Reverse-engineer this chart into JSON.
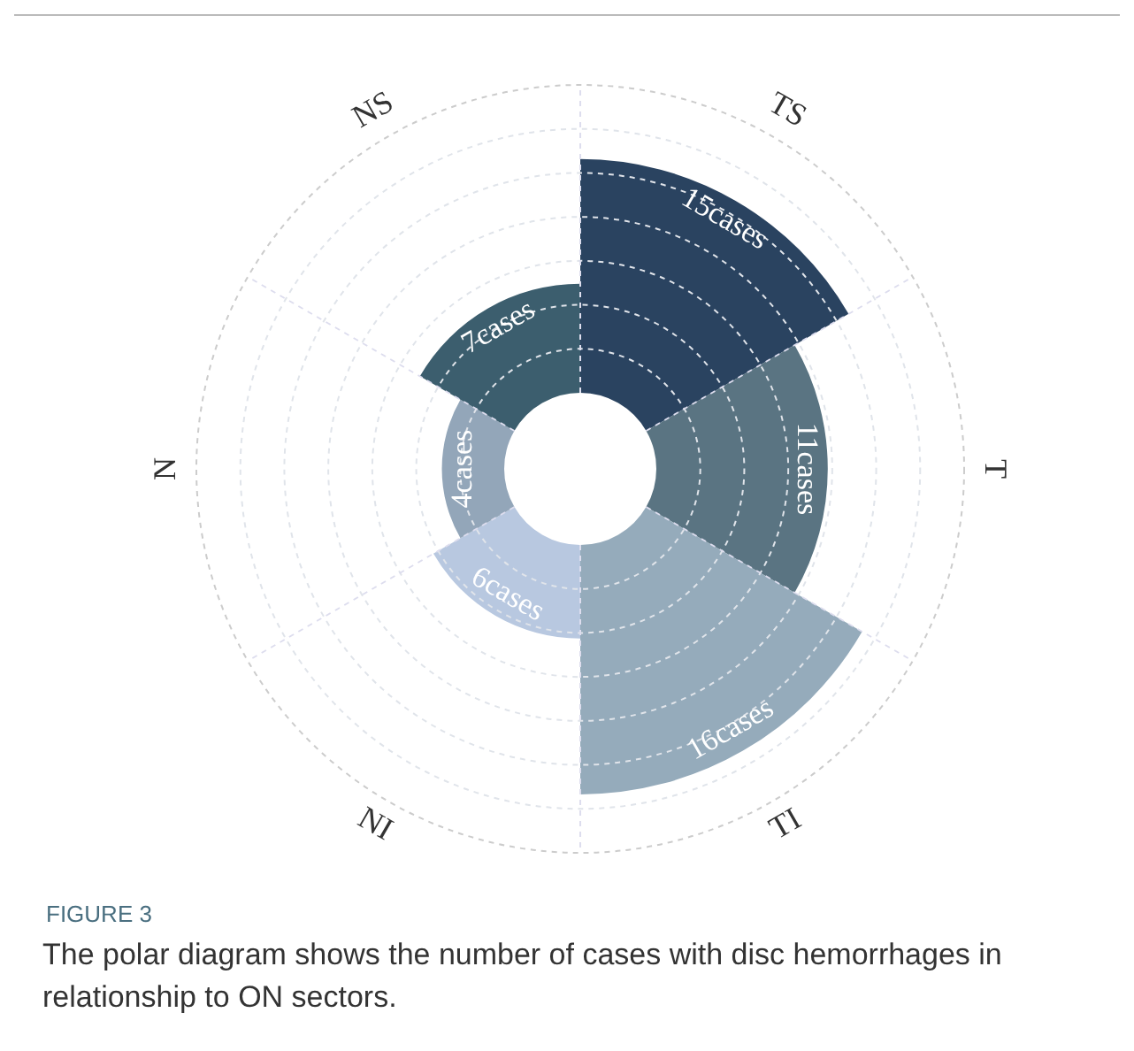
{
  "chart_data": {
    "type": "other",
    "title": "FIGURE 3",
    "annotations": [
      "The polar diagram shows the number of cases with disc hemorrhages in relationship to ON sectors."
    ],
    "categories": [
      "TS",
      "T",
      "TI",
      "NI",
      "N",
      "NS"
    ],
    "values": [
      15,
      11,
      16,
      6,
      4,
      7
    ],
    "value_labels": [
      "15cases",
      "11cases",
      "16cases",
      "6cases",
      "4cases",
      "7cases"
    ],
    "colors": [
      "#2a4360",
      "#5a7482",
      "#95abbb",
      "#b8c8e0",
      "#93a6b9",
      "#3c5e6e"
    ]
  }
}
